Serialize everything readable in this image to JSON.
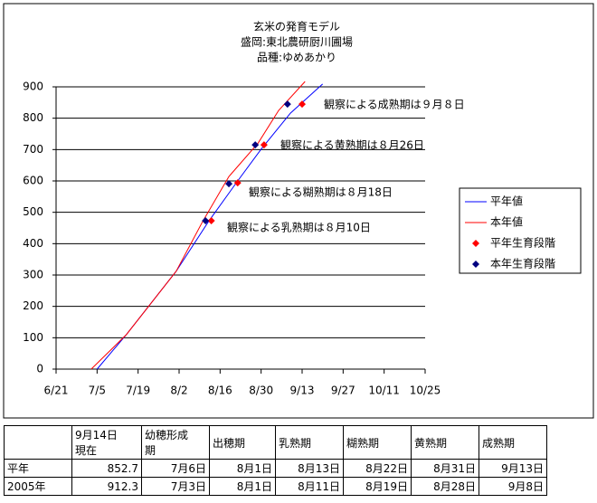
{
  "chart_data": {
    "type": "line",
    "title": [
      "玄米の発育モデル",
      "盛岡:東北農研厨川圃場",
      "品種:ゆめあかり"
    ],
    "xlim": [
      172,
      298
    ],
    "xticks": [
      {
        "value": 172,
        "label": "6/21"
      },
      {
        "value": 186,
        "label": "7/5"
      },
      {
        "value": 200,
        "label": "7/19"
      },
      {
        "value": 214,
        "label": "8/2"
      },
      {
        "value": 228,
        "label": "8/16"
      },
      {
        "value": 242,
        "label": "8/30"
      },
      {
        "value": 256,
        "label": "9/13"
      },
      {
        "value": 270,
        "label": "9/27"
      },
      {
        "value": 284,
        "label": "10/11"
      },
      {
        "value": 298,
        "label": "10/25"
      }
    ],
    "ylim": [
      0,
      900
    ],
    "yticks": [
      0,
      100,
      200,
      300,
      400,
      500,
      600,
      700,
      800,
      900
    ],
    "grid": true,
    "series": [
      {
        "name": "平年値",
        "color": "#0000ff",
        "marker": "line",
        "x": [
          186,
          196,
          213,
          224,
          234,
          242,
          252,
          263
        ],
        "values": [
          0,
          110,
          312,
          470,
          600,
          701,
          816,
          909
        ]
      },
      {
        "name": "本年値",
        "color": "#ff0000",
        "marker": "line",
        "x": [
          184,
          196,
          213,
          222,
          231,
          241,
          248,
          257
        ],
        "values": [
          0,
          110,
          312,
          470,
          614,
          721,
          825,
          917
        ]
      },
      {
        "name": "平年生育段階",
        "color": "#ff0000",
        "marker": "diamond",
        "x": [
          225,
          234,
          243,
          256
        ],
        "values": [
          473,
          594,
          715,
          845
        ]
      },
      {
        "name": "本年生育段階",
        "color": "#000080",
        "marker": "diamond",
        "x": [
          223,
          231,
          240,
          251
        ],
        "values": [
          473,
          591,
          715,
          845
        ]
      }
    ],
    "annotations": [
      "観察による成熟期は９月８日",
      "観察による黄熟期は８月26日",
      "観察による糊熟期は８月18日",
      "観察による乳熟期は８月10日"
    ],
    "annotation_color": "#0000cc"
  },
  "table": {
    "header": [
      "",
      "9月14日\n現在",
      "幼穂形成\n期",
      "出穂期",
      "乳熟期",
      "糊熟期",
      "黄熟期",
      "成熟期"
    ],
    "rows": [
      [
        "平年",
        "852.7",
        "7月6日",
        "8月1日",
        "8月13日",
        "8月22日",
        "8月31日",
        "9月13日"
      ],
      [
        "2005年",
        "912.3",
        "7月3日",
        "8月1日",
        "8月11日",
        "8月19日",
        "8月28日",
        "9月8日"
      ]
    ]
  }
}
